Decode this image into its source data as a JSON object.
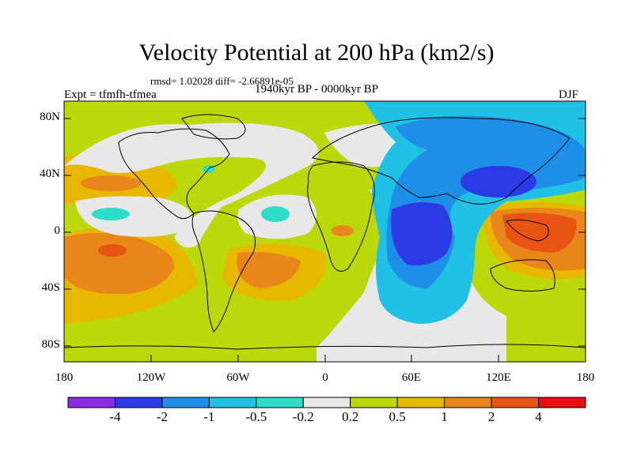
{
  "title": "Velocity Potential at 200 hPa (km2/s)",
  "stats": "rmsd= 1.02028 diff= -2.66891e-05",
  "experiment": "Expt = tfmfh-tfmea",
  "period": "1940kyr BP - 0000kyr BP",
  "season": "DJF",
  "y_axis_labels": [
    "80N",
    "40N",
    "0",
    "40S",
    "80S"
  ],
  "x_axis_labels": [
    "180",
    "120W",
    "60W",
    "0",
    "60E",
    "120E",
    "180"
  ],
  "colorbar": {
    "colors": [
      "#8a2be2",
      "#2a3be6",
      "#1e8fe6",
      "#21c1e6",
      "#2fdcc8",
      "#e8e8e8",
      "#bcd80a",
      "#e8b800",
      "#e8861a",
      "#e85414",
      "#e81010"
    ],
    "labels": [
      "-4",
      "-2",
      "-1",
      "-0.5",
      "-0.2",
      "0.2",
      "0.5",
      "1",
      "2",
      "4"
    ]
  }
}
